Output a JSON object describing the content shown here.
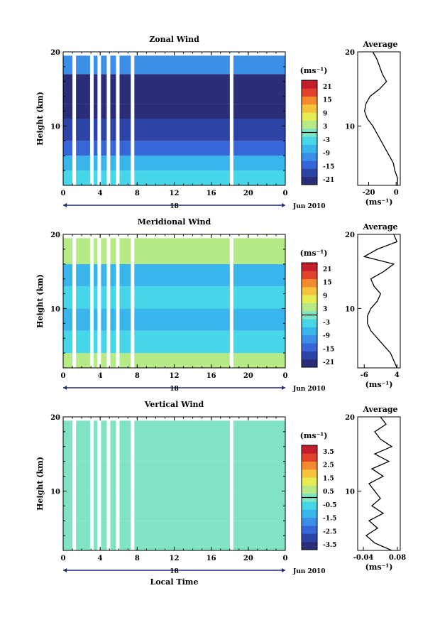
{
  "colors": {
    "colorbar": [
      "#2a2e78",
      "#2d43a6",
      "#3766d8",
      "#3b8fe8",
      "#38b6ec",
      "#45d6e8",
      "#7fe3c4",
      "#b5ea86",
      "#e7ec52",
      "#f6c43c",
      "#f48a2e",
      "#e2412a",
      "#c41e2a"
    ]
  },
  "chart_data": [
    {
      "type": "heatmap",
      "title": "Zonal Wind",
      "ylabel": "Height (km)",
      "ylim": [
        2,
        20
      ],
      "yticks": [
        "10",
        "20"
      ],
      "xlim": [
        0,
        24
      ],
      "xticks": [
        "0",
        "4",
        "8",
        "12",
        "16",
        "20",
        "0"
      ],
      "day_label": "18",
      "month_label": "Jun 2010",
      "colorbar": {
        "unit_label": "(ms⁻¹)",
        "ticks": [
          "21",
          "15",
          "9",
          "3",
          "-3",
          "-9",
          "-15",
          "-21"
        ],
        "range": [
          -24,
          24
        ]
      },
      "rows": [
        {
          "h": [
            2,
            4
          ],
          "v": -3
        },
        {
          "h": [
            4,
            6
          ],
          "v": -8
        },
        {
          "h": [
            6,
            8
          ],
          "v": -14
        },
        {
          "h": [
            8,
            11
          ],
          "v": -20
        },
        {
          "h": [
            11,
            13
          ],
          "v": -23
        },
        {
          "h": [
            13,
            17
          ],
          "v": -22
        },
        {
          "h": [
            17,
            19.5
          ],
          "v": -12
        }
      ],
      "gaps": [
        1.2,
        3.1,
        3.9,
        4.9,
        5.9,
        7.5,
        18.2
      ],
      "average": {
        "title": "Average",
        "xlabel": "(ms⁻¹)",
        "xticks": [
          "-20",
          "0"
        ],
        "xlim": [
          -28,
          3
        ],
        "yticks": [
          "10",
          "20"
        ],
        "profile": [
          [
            2,
            1
          ],
          [
            3,
            1
          ],
          [
            4,
            -1
          ],
          [
            5,
            -2
          ],
          [
            6,
            -5
          ],
          [
            7,
            -8
          ],
          [
            8,
            -11
          ],
          [
            9,
            -14
          ],
          [
            10,
            -17
          ],
          [
            11,
            -21
          ],
          [
            12,
            -23
          ],
          [
            13,
            -22
          ],
          [
            14,
            -19
          ],
          [
            15,
            -12
          ],
          [
            16,
            -7
          ],
          [
            17,
            -10
          ],
          [
            18,
            -12
          ],
          [
            19,
            -14
          ],
          [
            20,
            -17
          ]
        ]
      }
    },
    {
      "type": "heatmap",
      "title": "Meridional Wind",
      "ylabel": "Height (km)",
      "ylim": [
        2,
        20
      ],
      "yticks": [
        "10",
        "20"
      ],
      "xlim": [
        0,
        24
      ],
      "xticks": [
        "0",
        "4",
        "8",
        "12",
        "16",
        "20",
        "0"
      ],
      "day_label": "18",
      "month_label": "Jun 2010",
      "colorbar": {
        "unit_label": "(ms⁻¹)",
        "ticks": [
          "21",
          "15",
          "9",
          "3",
          "-3",
          "-9",
          "-15",
          "-21"
        ],
        "range": [
          -24,
          24
        ]
      },
      "rows": [
        {
          "h": [
            2,
            4
          ],
          "v": 3
        },
        {
          "h": [
            4,
            7
          ],
          "v": -2
        },
        {
          "h": [
            7,
            10
          ],
          "v": -8
        },
        {
          "h": [
            10,
            13
          ],
          "v": -3
        },
        {
          "h": [
            13,
            16
          ],
          "v": -7
        },
        {
          "h": [
            16,
            19.5
          ],
          "v": 2
        }
      ],
      "gaps": [
        1.2,
        3.1,
        3.9,
        4.9,
        5.9,
        7.5,
        18.2
      ],
      "average": {
        "title": "Average",
        "xlabel": "(ms⁻¹)",
        "xticks": [
          "-6",
          "4"
        ],
        "xlim": [
          -8,
          5
        ],
        "yticks": [
          "10",
          "20"
        ],
        "profile": [
          [
            2,
            4
          ],
          [
            3,
            3
          ],
          [
            4,
            2
          ],
          [
            5,
            0
          ],
          [
            6,
            -2
          ],
          [
            7,
            -4
          ],
          [
            8,
            -5
          ],
          [
            9,
            -5
          ],
          [
            10,
            -4
          ],
          [
            11,
            -2
          ],
          [
            12,
            -1
          ],
          [
            13,
            -3
          ],
          [
            14,
            -4
          ],
          [
            15,
            0
          ],
          [
            16,
            3
          ],
          [
            17,
            -6
          ],
          [
            18,
            -2
          ],
          [
            19,
            4
          ],
          [
            20,
            3
          ]
        ]
      }
    },
    {
      "type": "heatmap",
      "title": "Vertical Wind",
      "ylabel": "Height (km)",
      "ylim": [
        2,
        20
      ],
      "yticks": [
        "10",
        "20"
      ],
      "xlim": [
        0,
        24
      ],
      "xticks": [
        "0",
        "4",
        "8",
        "12",
        "16",
        "20",
        "0"
      ],
      "day_label": "18",
      "month_label": "Jun 2010",
      "xlabel": "Local Time",
      "colorbar": {
        "unit_label": "(ms⁻¹)",
        "ticks": [
          "3.5",
          "2.5",
          "1.5",
          "0.5",
          "-0.5",
          "-1.5",
          "-2.5",
          "-3.5"
        ],
        "range": [
          -4,
          4
        ]
      },
      "rows": [
        {
          "h": [
            2,
            6
          ],
          "v": -0.3
        },
        {
          "h": [
            6,
            10
          ],
          "v": -0.1
        },
        {
          "h": [
            10,
            14
          ],
          "v": 0.1
        },
        {
          "h": [
            14,
            19.5
          ],
          "v": -0.2
        }
      ],
      "gaps": [
        1.2,
        3.1,
        3.9,
        4.9,
        5.9,
        7.5,
        18.2
      ],
      "average": {
        "title": "Average",
        "xlabel": "(ms⁻¹)",
        "xticks": [
          "-0.04",
          "0.08"
        ],
        "xlim": [
          -0.06,
          0.09
        ],
        "yticks": [
          "10",
          "20"
        ],
        "profile": [
          [
            2,
            0.06
          ],
          [
            3,
            0.0
          ],
          [
            4,
            -0.03
          ],
          [
            5,
            0.01
          ],
          [
            6,
            -0.02
          ],
          [
            7,
            0.03
          ],
          [
            8,
            -0.01
          ],
          [
            9,
            0.02
          ],
          [
            10,
            0.0
          ],
          [
            11,
            -0.02
          ],
          [
            12,
            0.03
          ],
          [
            13,
            -0.01
          ],
          [
            14,
            0.05
          ],
          [
            15,
            0.0
          ],
          [
            16,
            0.06
          ],
          [
            17,
            0.02
          ],
          [
            18,
            0.0
          ],
          [
            19,
            0.04
          ],
          [
            20,
            0.02
          ]
        ]
      }
    }
  ]
}
